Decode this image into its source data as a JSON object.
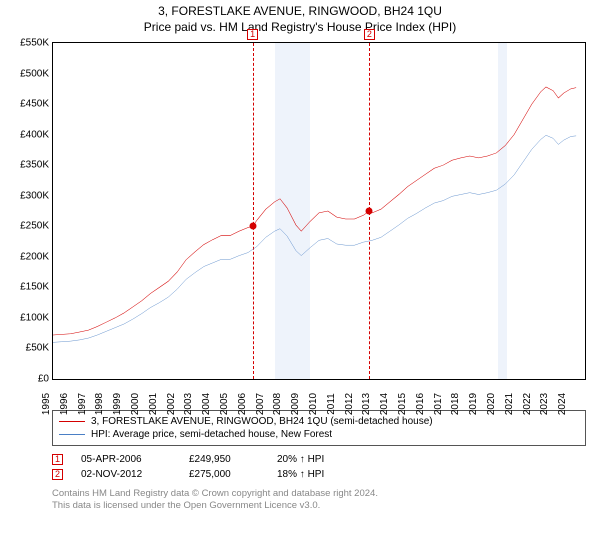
{
  "title": "3, FORESTLAKE AVENUE, RINGWOOD, BH24 1QU",
  "subtitle": "Price paid vs. HM Land Registry's House Price Index (HPI)",
  "chart": {
    "type": "line",
    "background_color": "#ffffff",
    "border_color": "#000000",
    "yaxis": {
      "min": 0,
      "max": 550000,
      "tick_step": 50000,
      "labels": [
        "£0",
        "£50K",
        "£100K",
        "£150K",
        "£200K",
        "£250K",
        "£300K",
        "£350K",
        "£400K",
        "£450K",
        "£500K",
        "£550K"
      ],
      "label_fontsize": 10,
      "label_color": "#000000"
    },
    "xaxis": {
      "min": 1995,
      "max": 2025,
      "labels": [
        "1995",
        "1996",
        "1997",
        "1998",
        "1999",
        "2000",
        "2001",
        "2002",
        "2003",
        "2004",
        "2005",
        "2006",
        "2007",
        "2008",
        "2009",
        "2010",
        "2011",
        "2012",
        "2013",
        "2014",
        "2015",
        "2016",
        "2017",
        "2018",
        "2019",
        "2020",
        "2021",
        "2022",
        "2023",
        "2024"
      ],
      "label_fontsize": 10,
      "label_color": "#000000",
      "label_rotation": -90
    },
    "shaded_regions": [
      {
        "from_year": 2007.5,
        "to_year": 2009.5,
        "color": "#eef3fb"
      },
      {
        "from_year": 2020.1,
        "to_year": 2020.6,
        "color": "#eef3fb"
      }
    ],
    "sale_markers": [
      {
        "n": "1",
        "year": 2006.26,
        "price": 249950,
        "color": "#d40000",
        "line_dash": true
      },
      {
        "n": "2",
        "year": 2012.84,
        "price": 275000,
        "color": "#d40000",
        "line_dash": true
      }
    ],
    "series": [
      {
        "name": "property_price",
        "label": "3, FORESTLAKE AVENUE, RINGWOOD, BH24 1QU (semi-detached house)",
        "color": "#d40000",
        "line_width": 1.8,
        "points": [
          [
            1995.0,
            72000
          ],
          [
            1995.5,
            73000
          ],
          [
            1996.0,
            74000
          ],
          [
            1996.5,
            77000
          ],
          [
            1997.0,
            80000
          ],
          [
            1997.5,
            86000
          ],
          [
            1998.0,
            93000
          ],
          [
            1998.5,
            100000
          ],
          [
            1999.0,
            108000
          ],
          [
            1999.5,
            118000
          ],
          [
            2000.0,
            128000
          ],
          [
            2000.5,
            140000
          ],
          [
            2001.0,
            150000
          ],
          [
            2001.5,
            160000
          ],
          [
            2002.0,
            175000
          ],
          [
            2002.5,
            195000
          ],
          [
            2003.0,
            208000
          ],
          [
            2003.5,
            220000
          ],
          [
            2004.0,
            228000
          ],
          [
            2004.5,
            235000
          ],
          [
            2005.0,
            235000
          ],
          [
            2005.5,
            242000
          ],
          [
            2006.0,
            248000
          ],
          [
            2006.26,
            249950
          ],
          [
            2006.5,
            260000
          ],
          [
            2007.0,
            278000
          ],
          [
            2007.5,
            290000
          ],
          [
            2007.8,
            295000
          ],
          [
            2008.2,
            280000
          ],
          [
            2008.7,
            252000
          ],
          [
            2009.0,
            242000
          ],
          [
            2009.5,
            258000
          ],
          [
            2010.0,
            272000
          ],
          [
            2010.5,
            275000
          ],
          [
            2011.0,
            265000
          ],
          [
            2011.5,
            262000
          ],
          [
            2012.0,
            262000
          ],
          [
            2012.5,
            268000
          ],
          [
            2012.84,
            275000
          ],
          [
            2013.0,
            272000
          ],
          [
            2013.5,
            278000
          ],
          [
            2014.0,
            290000
          ],
          [
            2014.5,
            302000
          ],
          [
            2015.0,
            315000
          ],
          [
            2015.5,
            325000
          ],
          [
            2016.0,
            335000
          ],
          [
            2016.5,
            345000
          ],
          [
            2017.0,
            350000
          ],
          [
            2017.5,
            358000
          ],
          [
            2018.0,
            362000
          ],
          [
            2018.5,
            365000
          ],
          [
            2019.0,
            362000
          ],
          [
            2019.5,
            365000
          ],
          [
            2020.0,
            370000
          ],
          [
            2020.5,
            382000
          ],
          [
            2021.0,
            400000
          ],
          [
            2021.5,
            425000
          ],
          [
            2022.0,
            450000
          ],
          [
            2022.5,
            470000
          ],
          [
            2022.8,
            478000
          ],
          [
            2023.2,
            472000
          ],
          [
            2023.5,
            460000
          ],
          [
            2023.8,
            468000
          ],
          [
            2024.2,
            475000
          ],
          [
            2024.5,
            477000
          ]
        ]
      },
      {
        "name": "hpi",
        "label": "HPI: Average price, semi-detached house, New Forest",
        "color": "#4a7fc5",
        "line_width": 1.5,
        "points": [
          [
            1995.0,
            60000
          ],
          [
            1995.5,
            61000
          ],
          [
            1996.0,
            62000
          ],
          [
            1996.5,
            64000
          ],
          [
            1997.0,
            67000
          ],
          [
            1997.5,
            72000
          ],
          [
            1998.0,
            78000
          ],
          [
            1998.5,
            84000
          ],
          [
            1999.0,
            90000
          ],
          [
            1999.5,
            98000
          ],
          [
            2000.0,
            107000
          ],
          [
            2000.5,
            117000
          ],
          [
            2001.0,
            125000
          ],
          [
            2001.5,
            134000
          ],
          [
            2002.0,
            147000
          ],
          [
            2002.5,
            163000
          ],
          [
            2003.0,
            174000
          ],
          [
            2003.5,
            184000
          ],
          [
            2004.0,
            190000
          ],
          [
            2004.5,
            196000
          ],
          [
            2005.0,
            196000
          ],
          [
            2005.5,
            202000
          ],
          [
            2006.0,
            207000
          ],
          [
            2006.5,
            217000
          ],
          [
            2007.0,
            232000
          ],
          [
            2007.5,
            242000
          ],
          [
            2007.8,
            246000
          ],
          [
            2008.2,
            234000
          ],
          [
            2008.7,
            210000
          ],
          [
            2009.0,
            202000
          ],
          [
            2009.5,
            215000
          ],
          [
            2010.0,
            227000
          ],
          [
            2010.5,
            230000
          ],
          [
            2011.0,
            221000
          ],
          [
            2011.5,
            219000
          ],
          [
            2012.0,
            219000
          ],
          [
            2012.5,
            224000
          ],
          [
            2013.0,
            227000
          ],
          [
            2013.5,
            232000
          ],
          [
            2014.0,
            242000
          ],
          [
            2014.5,
            252000
          ],
          [
            2015.0,
            263000
          ],
          [
            2015.5,
            271000
          ],
          [
            2016.0,
            280000
          ],
          [
            2016.5,
            288000
          ],
          [
            2017.0,
            292000
          ],
          [
            2017.5,
            299000
          ],
          [
            2018.0,
            302000
          ],
          [
            2018.5,
            305000
          ],
          [
            2019.0,
            302000
          ],
          [
            2019.5,
            305000
          ],
          [
            2020.0,
            309000
          ],
          [
            2020.5,
            319000
          ],
          [
            2021.0,
            334000
          ],
          [
            2021.5,
            355000
          ],
          [
            2022.0,
            376000
          ],
          [
            2022.5,
            392000
          ],
          [
            2022.8,
            399000
          ],
          [
            2023.2,
            394000
          ],
          [
            2023.5,
            384000
          ],
          [
            2023.8,
            391000
          ],
          [
            2024.2,
            397000
          ],
          [
            2024.5,
            398000
          ]
        ]
      }
    ]
  },
  "legend": {
    "border_color": "#555555",
    "fontsize": 10
  },
  "sales": [
    {
      "n": "1",
      "date": "05-APR-2006",
      "price": "£249,950",
      "hpi": "20% ↑ HPI",
      "color": "#d40000"
    },
    {
      "n": "2",
      "date": "02-NOV-2012",
      "price": "£275,000",
      "hpi": "18% ↑ HPI",
      "color": "#d40000"
    }
  ],
  "footer": {
    "line1": "Contains HM Land Registry data © Crown copyright and database right 2024.",
    "line2": "This data is licensed under the Open Government Licence v3.0.",
    "color": "#888888",
    "fontsize": 9.5
  }
}
